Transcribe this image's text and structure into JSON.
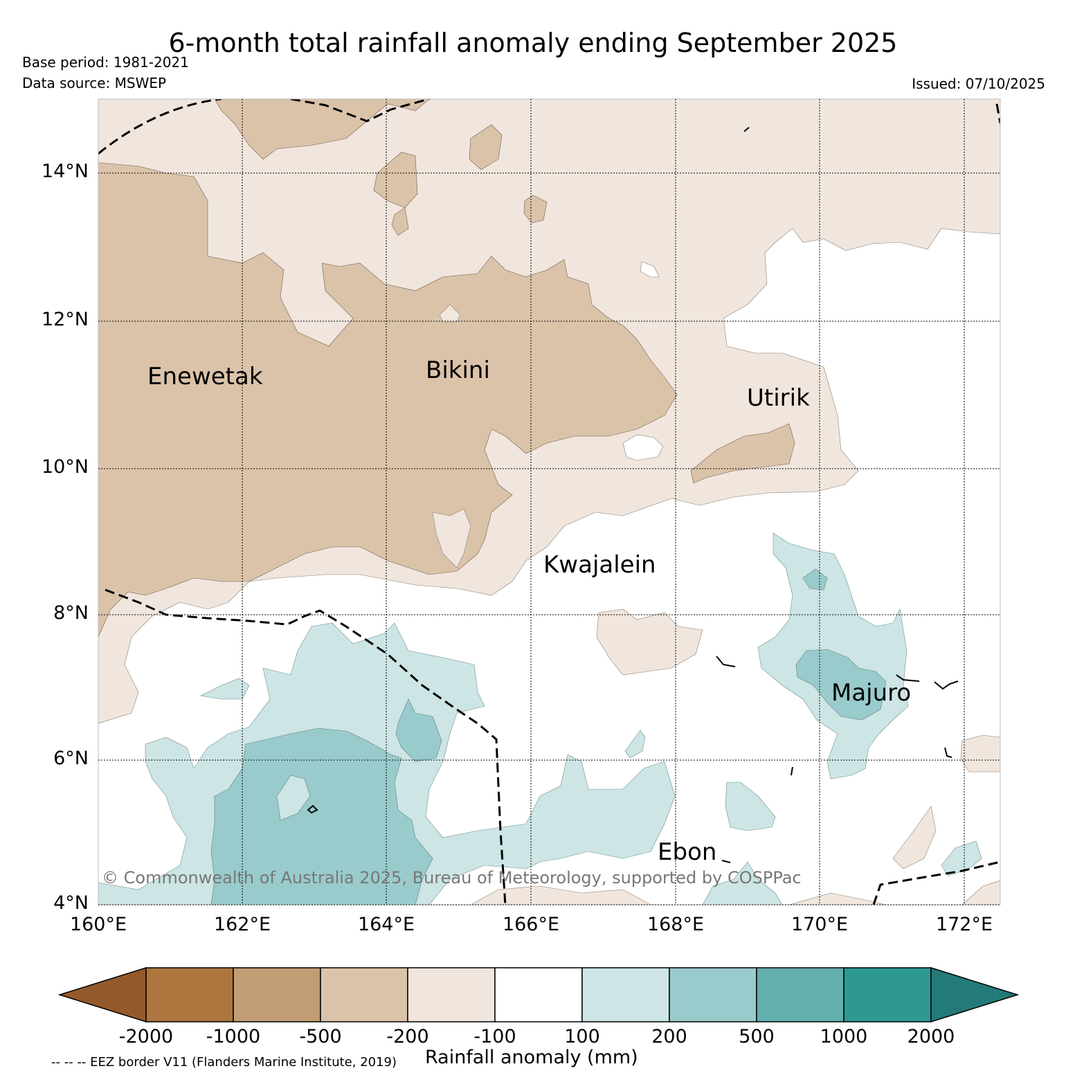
{
  "header": {
    "title": "6-month total rainfall anomaly ending September 2025",
    "base_period": "Base period: 1981-2021",
    "data_source": "Data source: MSWEP",
    "issued": "Issued: 07/10/2025"
  },
  "axes": {
    "lat_labels": [
      "14°N",
      "12°N",
      "10°N",
      "8°N",
      "6°N",
      "4°N"
    ],
    "lon_labels": [
      "160°E",
      "162°E",
      "164°E",
      "166°E",
      "168°E",
      "170°E",
      "172°E"
    ]
  },
  "places": [
    "Enewetak",
    "Bikini",
    "Utirik",
    "Kwajalein",
    "Majuro",
    "Ebon"
  ],
  "copyright": "© Commonwealth of Australia 2025, Bureau of Meteorology, supported by COSPPac",
  "colorbar": {
    "ticks": [
      "-2000",
      "-1000",
      "-500",
      "-200",
      "-100",
      "100",
      "200",
      "500",
      "1000",
      "2000"
    ],
    "label": "Rainfall anomaly (mm)",
    "colors": [
      "#94592a",
      "#ad763f",
      "#c29c73",
      "#dbc3aa",
      "#f0e6dd",
      "#ffffff",
      "#cde5e4",
      "#9acbcc",
      "#63afae",
      "#2e9893",
      "#237a79"
    ]
  },
  "legend_note": "-- -- -- EEZ border V11 (Flanders Marine Institute, 2019)"
}
